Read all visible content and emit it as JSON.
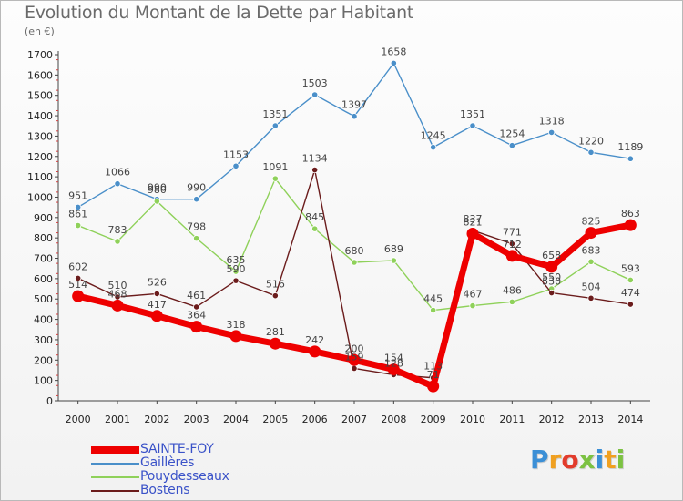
{
  "title": "Evolution du Montant de la Dette par Habitant",
  "subtitle": "(en €)",
  "logo": "Proxiti",
  "logo_colors": [
    "#3b8fd6",
    "#f0a020",
    "#e23c2c",
    "#7cc242",
    "#3b8fd6",
    "#f0a020",
    "#7cc242"
  ],
  "chart_data": {
    "type": "line",
    "x": [
      "2000",
      "2001",
      "2002",
      "2003",
      "2004",
      "2005",
      "2006",
      "2007",
      "2008",
      "2009",
      "2010",
      "2011",
      "2012",
      "2013",
      "2014"
    ],
    "ylim": [
      0,
      1700
    ],
    "yticks": [
      0,
      100,
      200,
      300,
      400,
      500,
      600,
      700,
      800,
      900,
      1000,
      1100,
      1200,
      1300,
      1400,
      1500,
      1600,
      1700
    ],
    "grid": false,
    "legend_position": "bottom-left",
    "series": [
      {
        "name": "Gaillères",
        "color": "#4a8fc9",
        "values": [
          951,
          1066,
          990,
          990,
          1153,
          1351,
          1503,
          1397,
          1658,
          1245,
          1351,
          1254,
          1318,
          1220,
          1189
        ]
      },
      {
        "name": "Pouydesseaux",
        "color": "#8fd15a",
        "values": [
          861,
          783,
          980,
          798,
          635,
          1091,
          845,
          680,
          689,
          445,
          467,
          486,
          550,
          683,
          593
        ]
      },
      {
        "name": "Bostens",
        "color": "#6b1c1c",
        "values": [
          602,
          510,
          526,
          461,
          590,
          516,
          1134,
          159,
          128,
          113,
          837,
          771,
          530,
          504,
          474
        ]
      },
      {
        "name": "SAINTE-FOY",
        "color": "#ee0000",
        "values": [
          514,
          468,
          417,
          364,
          318,
          281,
          242,
          200,
          154,
          71,
          821,
          712,
          658,
          825,
          863
        ]
      }
    ]
  }
}
